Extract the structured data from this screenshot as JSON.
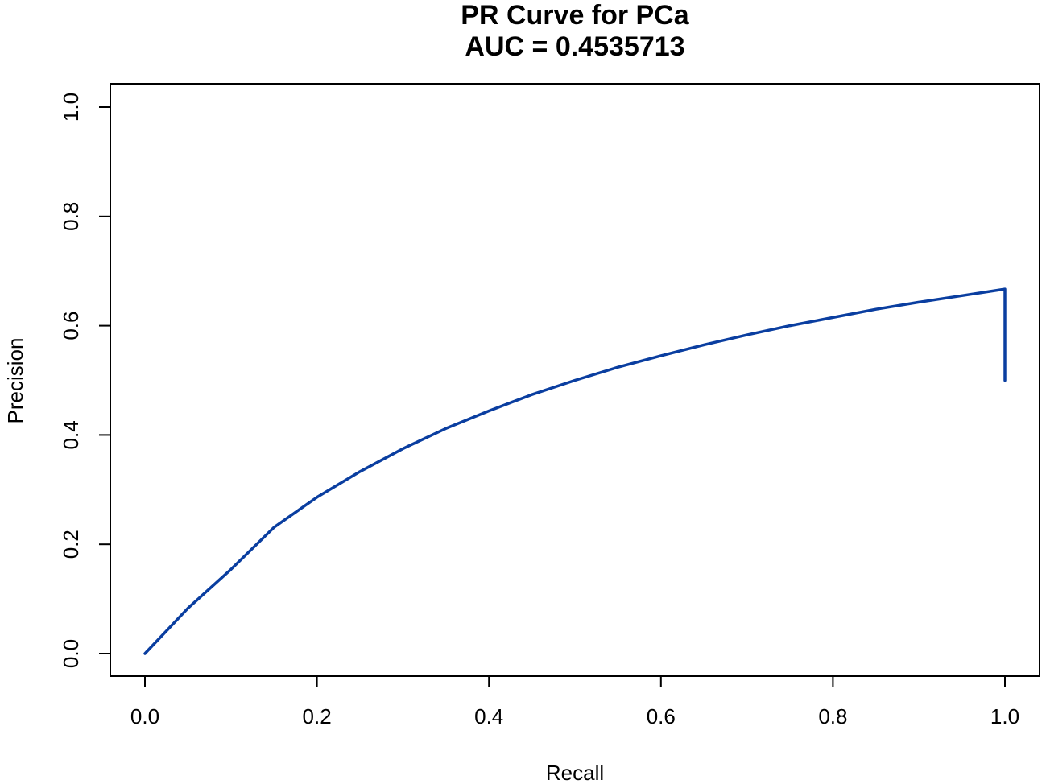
{
  "chart_data": {
    "type": "line",
    "title": "PR Curve for PCa",
    "subtitle": "AUC = 0.4535713",
    "xlabel": "Recall",
    "ylabel": "Precision",
    "xlim": [
      0,
      1
    ],
    "ylim": [
      0,
      1
    ],
    "x_ticks": [
      "0.0",
      "0.2",
      "0.4",
      "0.6",
      "0.8",
      "1.0"
    ],
    "y_ticks": [
      "0.0",
      "0.2",
      "0.4",
      "0.6",
      "0.8",
      "1.0"
    ],
    "grid": false,
    "legend": "none",
    "series": [
      {
        "color": "#0a3ea0",
        "x": [
          0.0,
          0.05,
          0.1,
          0.15,
          0.2,
          0.25,
          0.3,
          0.35,
          0.4,
          0.45,
          0.5,
          0.55,
          0.6,
          0.65,
          0.7,
          0.75,
          0.8,
          0.85,
          0.9,
          0.95,
          1.0,
          1.0
        ],
        "y": [
          0.0,
          0.083,
          0.154,
          0.231,
          0.286,
          0.333,
          0.375,
          0.412,
          0.444,
          0.474,
          0.5,
          0.524,
          0.545,
          0.565,
          0.583,
          0.6,
          0.615,
          0.63,
          0.643,
          0.655,
          0.667,
          0.5
        ]
      }
    ]
  }
}
